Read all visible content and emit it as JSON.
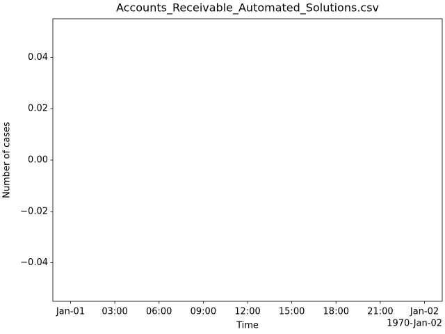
{
  "chart_data": {
    "type": "line",
    "title": "Accounts_Receivable_Automated_Solutions.csv",
    "x_label": "Time",
    "y_label": "Number of cases",
    "x_offset_label": "1970-Jan-02",
    "xlim": [
      -1.2,
      25.2
    ],
    "xticks": [
      {
        "value": 0,
        "label": "Jan-01"
      },
      {
        "value": 3,
        "label": "03:00"
      },
      {
        "value": 6,
        "label": "06:00"
      },
      {
        "value": 9,
        "label": "09:00"
      },
      {
        "value": 12,
        "label": "12:00"
      },
      {
        "value": 15,
        "label": "15:00"
      },
      {
        "value": 18,
        "label": "18:00"
      },
      {
        "value": 21,
        "label": "21:00"
      },
      {
        "value": 24,
        "label": "Jan-02"
      }
    ],
    "ylim": [
      -0.055,
      0.055
    ],
    "yticks": [
      {
        "value": -0.04,
        "label": "−0.04"
      },
      {
        "value": -0.02,
        "label": "−0.02"
      },
      {
        "value": 0,
        "label": "0.00"
      },
      0.02,
      0.04
    ],
    "grid": false,
    "series": []
  }
}
